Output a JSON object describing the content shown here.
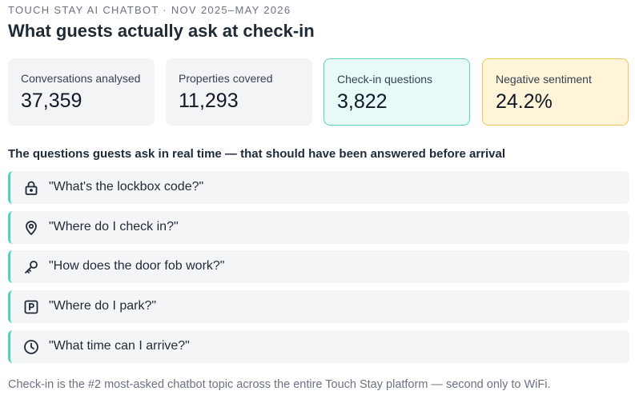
{
  "header": {
    "eyebrow": "TOUCH STAY AI CHATBOT · NOV 2025–MAY 2026",
    "title": "What guests actually ask at check-in"
  },
  "stats": [
    {
      "label": "Conversations analysed",
      "value": "37,359"
    },
    {
      "label": "Properties covered",
      "value": "11,293"
    },
    {
      "label": "Check-in questions",
      "value": "3,822"
    },
    {
      "label": "Negative sentiment",
      "value": "24.2%"
    }
  ],
  "section": {
    "heading": "The questions guests ask in real time — that should have been answered before arrival",
    "questions": [
      "\"What's the lockbox code?\"",
      "\"Where do I check in?\"",
      "\"How does the door fob work?\"",
      "\"Where do I park?\"",
      "\"What time can I arrive?\""
    ]
  },
  "footer": {
    "note": "Check-in is the #2 most-asked chatbot topic across the entire Touch Stay platform — second only to WiFi."
  }
}
